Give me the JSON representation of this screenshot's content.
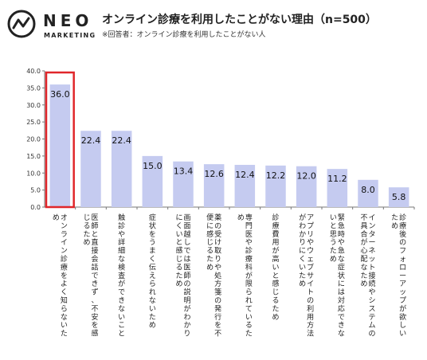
{
  "brand": {
    "name": "NEO",
    "sub": "MARKETING"
  },
  "chart_data": {
    "type": "bar",
    "title": "オンライン診療を利用したことがない理由（n=500）",
    "subtitle": "※回答者：オンライン診療を利用したことがない人",
    "categories": [
      "オンライン診療をよく知らないため",
      "医師と直接会話できず、不安を感じるため",
      "触診や詳細な検査ができないこと",
      "症状をうまく伝えられないため",
      "画面越しでは医師の説明がわかりにくいと感じるため",
      "薬の受け取りや処方箋の発行を不便に感じるため",
      "専門医や診療科が限られているため",
      "診療費用が高いと感じるため",
      "アプリやウェブサイトの利用方法がわかりにくいため",
      "緊急時や急な症状には対応できないと思うため",
      "インターネット接続やシステムの不具合が心配なため",
      "診療後のフォローアップが欲しいため"
    ],
    "values": [
      36.0,
      22.4,
      22.4,
      15.0,
      13.4,
      12.6,
      12.4,
      12.2,
      12.0,
      11.2,
      8.0,
      5.8
    ],
    "value_labels": [
      "36.0",
      "22.4",
      "22.4",
      "15.0",
      "13.4",
      "12.6",
      "12.4",
      "12.2",
      "12.0",
      "11.2",
      "8.0",
      "5.8"
    ],
    "yticks": [
      "0.0",
      "5.0",
      "10.0",
      "15.0",
      "20.0",
      "25.0",
      "30.0",
      "35.0",
      "40.0"
    ],
    "ylim": [
      0,
      40
    ],
    "highlight_index": 0,
    "grid": false,
    "legend": "none",
    "colors": {
      "bar": "#c5cbf0",
      "highlight_border": "#e0262a",
      "axis": "#777777"
    }
  }
}
